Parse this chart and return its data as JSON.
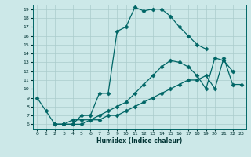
{
  "title": "",
  "xlabel": "Humidex (Indice chaleur)",
  "bg_color": "#cce8e8",
  "line_color": "#006666",
  "grid_color": "#aacccc",
  "xlim": [
    -0.5,
    23.5
  ],
  "ylim": [
    5.5,
    19.5
  ],
  "xticks": [
    0,
    1,
    2,
    3,
    4,
    5,
    6,
    7,
    8,
    9,
    10,
    11,
    12,
    13,
    14,
    15,
    16,
    17,
    18,
    19,
    20,
    21,
    22,
    23
  ],
  "yticks": [
    6,
    7,
    8,
    9,
    10,
    11,
    12,
    13,
    14,
    15,
    16,
    17,
    18,
    19
  ],
  "line1_x": [
    0,
    1,
    2,
    3,
    4,
    5,
    6,
    7,
    8,
    9,
    10,
    11,
    12,
    13,
    14,
    15,
    16,
    17,
    18,
    19
  ],
  "line1_y": [
    9.0,
    7.5,
    6.0,
    6.0,
    6.0,
    7.0,
    7.0,
    9.5,
    9.5,
    16.5,
    17.0,
    19.2,
    18.8,
    19.0,
    19.0,
    18.2,
    17.0,
    16.0,
    15.0,
    14.5
  ],
  "line2_x": [
    2,
    3,
    4,
    5,
    6,
    7,
    8,
    9,
    10,
    11,
    12,
    13,
    14,
    15,
    16,
    17,
    18,
    19,
    20,
    21,
    22
  ],
  "line2_y": [
    6.0,
    6.0,
    6.5,
    6.5,
    6.5,
    7.0,
    7.5,
    8.0,
    8.5,
    9.5,
    10.5,
    11.5,
    12.5,
    13.2,
    13.0,
    12.5,
    11.5,
    10.0,
    13.5,
    13.2,
    12.0
  ],
  "line3_x": [
    2,
    3,
    4,
    5,
    6,
    7,
    8,
    9,
    10,
    11,
    12,
    13,
    14,
    15,
    16,
    17,
    18,
    19,
    20,
    21,
    22,
    23
  ],
  "line3_y": [
    6.0,
    6.0,
    6.0,
    6.0,
    6.5,
    6.5,
    7.0,
    7.0,
    7.5,
    8.0,
    8.5,
    9.0,
    9.5,
    10.0,
    10.5,
    11.0,
    11.0,
    11.5,
    10.0,
    13.5,
    10.5,
    10.5
  ],
  "markersize": 2.5,
  "linewidth": 0.9
}
